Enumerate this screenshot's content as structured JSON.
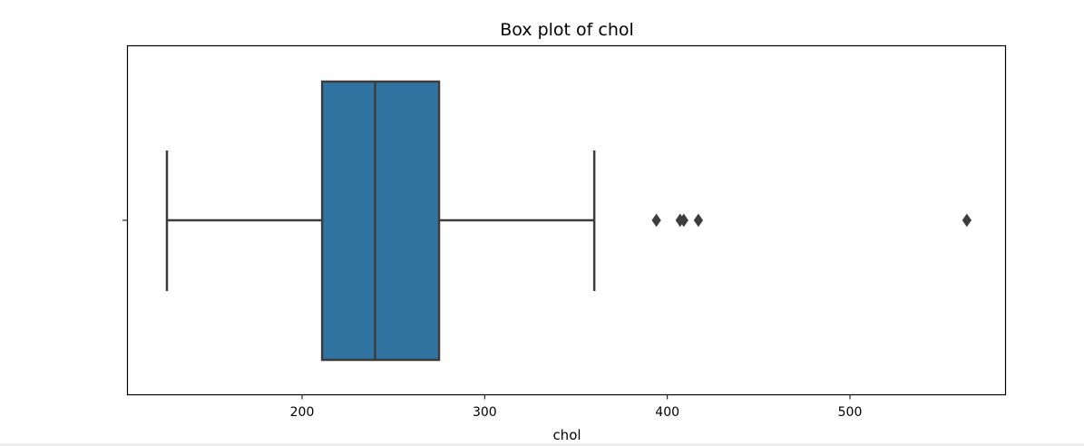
{
  "chart_data": {
    "type": "box",
    "title": "Box plot of chol",
    "xlabel": "chol",
    "ylabel": "",
    "orientation": "horizontal",
    "xlim": [
      103,
      584
    ],
    "xticks": [
      200,
      300,
      400,
      500
    ],
    "xtick_labels": [
      "200",
      "300",
      "400",
      "500"
    ],
    "grid": false,
    "box": {
      "whisker_low": 126,
      "q1": 211,
      "median": 240,
      "q3": 275,
      "whisker_high": 360,
      "outliers": [
        394,
        407,
        409,
        417,
        564
      ]
    },
    "colors": {
      "box_fill": "#3274a1",
      "line": "#3d3d3d",
      "axes": "#000000"
    }
  }
}
